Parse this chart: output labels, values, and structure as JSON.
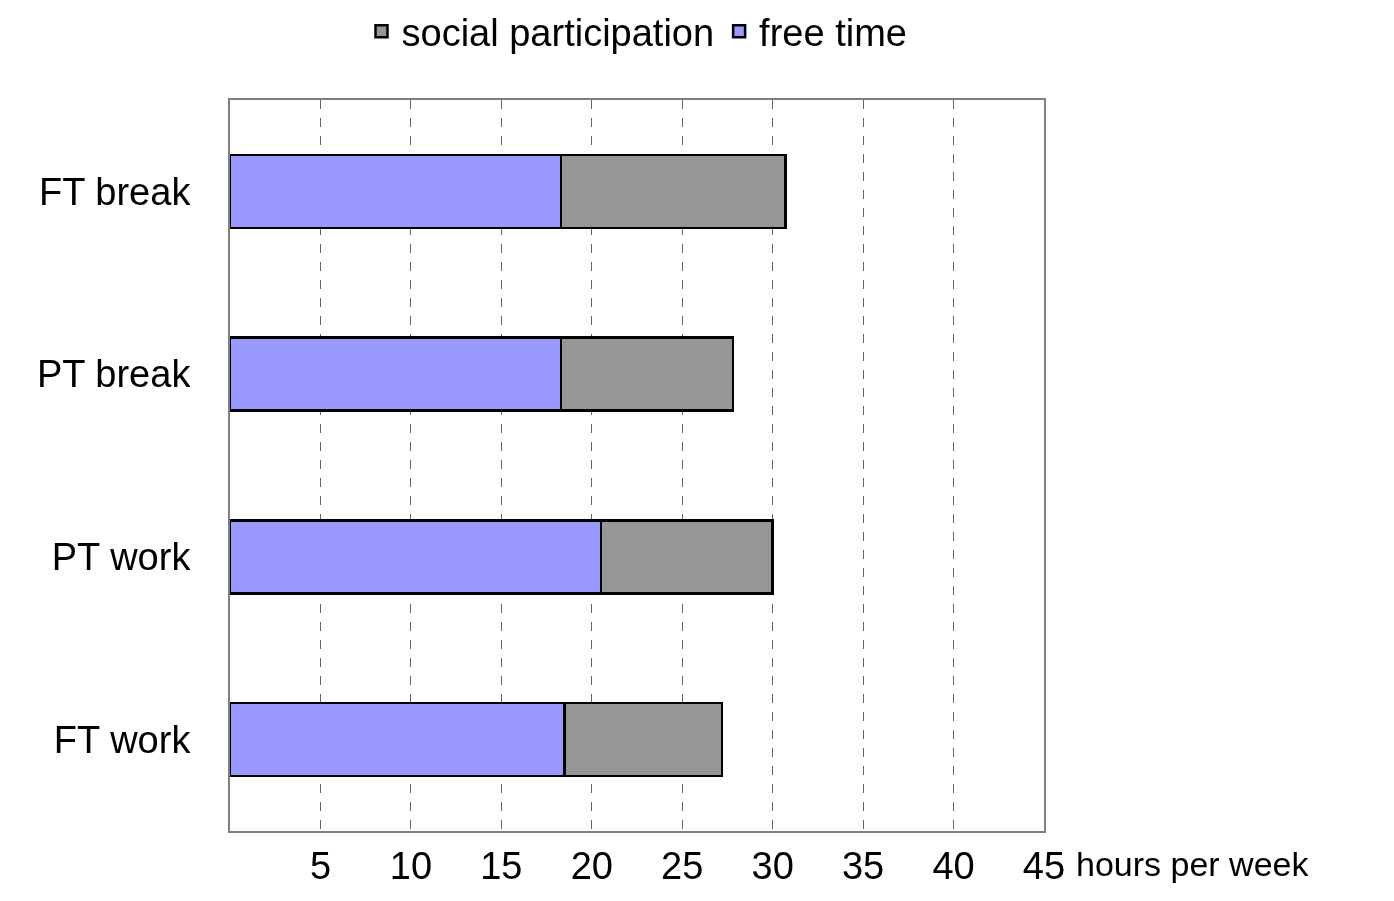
{
  "chart_data": {
    "type": "bar",
    "orientation": "horizontal",
    "stacked": true,
    "xlabel": "hours per week",
    "categories": [
      "FT break",
      "PT break",
      "PT work",
      "FT work"
    ],
    "series": [
      {
        "name": "free time",
        "color": "#9999ff",
        "values": [
          18.3,
          18.3,
          20.5,
          18.5
        ]
      },
      {
        "name": "social participation",
        "color": "#969696",
        "values": [
          12.4,
          9.5,
          9.5,
          8.7
        ]
      }
    ],
    "xlim": [
      0,
      45
    ],
    "xticks": [
      5,
      10,
      15,
      20,
      25,
      30,
      35,
      40,
      45
    ],
    "grid": "x",
    "legend": "top"
  }
}
